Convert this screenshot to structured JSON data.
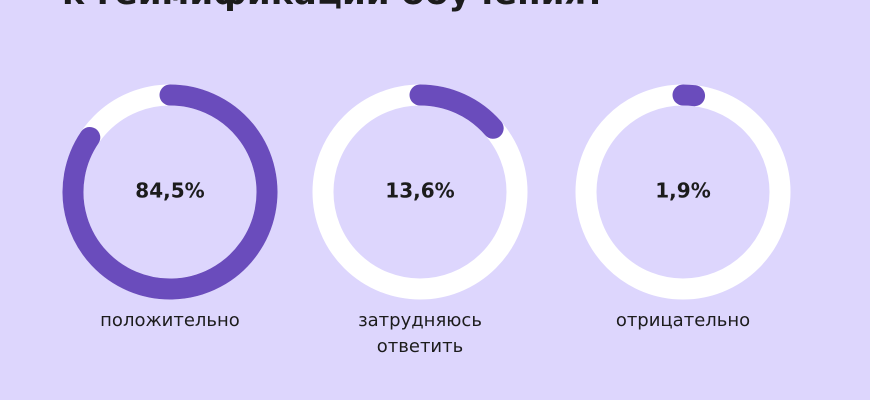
{
  "chart_data": {
    "type": "donut",
    "title": "к геймификации обучения?",
    "categories": [
      "положительно",
      "затрудняюсь ответить",
      "отрицательно"
    ],
    "values": [
      84.5,
      13.6,
      1.9
    ],
    "value_labels": [
      "84,5%",
      "13,6%",
      "1,9%"
    ],
    "color": "#6a4cbc",
    "track_color": "#ffffff"
  }
}
